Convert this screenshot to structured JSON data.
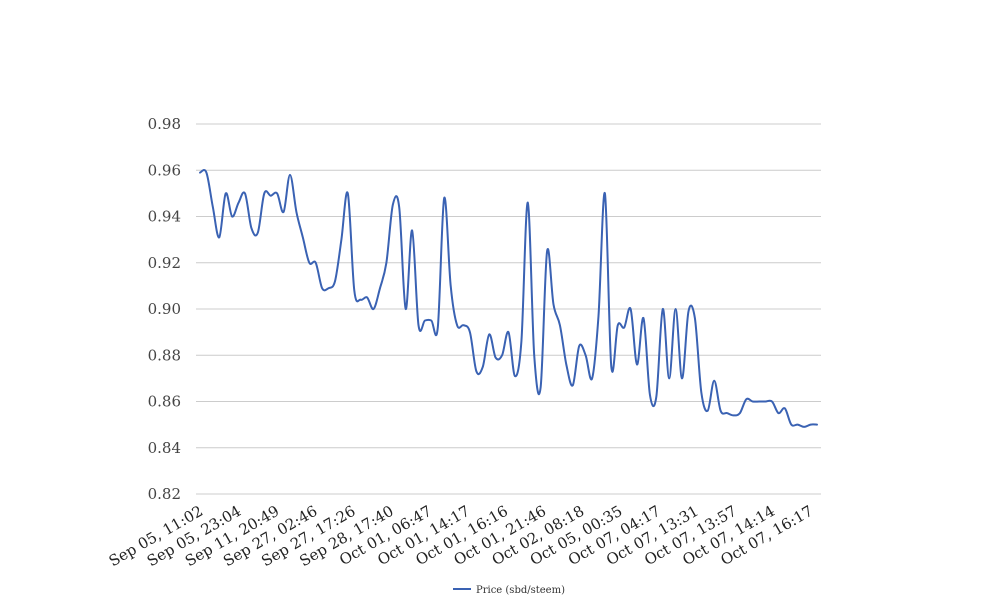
{
  "chart_data": {
    "type": "line",
    "title": "",
    "xlabel": "",
    "ylabel": "",
    "ylim": [
      0.82,
      0.98
    ],
    "yticks": [
      "0.82",
      "0.84",
      "0.86",
      "0.88",
      "0.90",
      "0.92",
      "0.94",
      "0.96",
      "0.98"
    ],
    "xtick_labels": [
      "Sep 05, 11:02",
      "Sep 05, 23:04",
      "Sep 11, 20:49",
      "Sep 27, 02:46",
      "Sep 27, 17:26",
      "Sep 28, 17:40",
      "Oct 01, 06:47",
      "Oct 01, 14:17",
      "Oct 01, 16:16",
      "Oct 01, 21:46",
      "Oct 02, 08:18",
      "Oct 05, 00:35",
      "Oct 07, 04:17",
      "Oct 07, 13:31",
      "Oct 07, 13:57",
      "Oct 07, 14:14",
      "Oct 07, 16:17"
    ],
    "grid": true,
    "legend_position": "bottom-center",
    "series": [
      {
        "name": "Price (sbd/steem)",
        "color": "#3a62b3",
        "values": [
          0.959,
          0.959,
          0.944,
          0.931,
          0.95,
          0.94,
          0.946,
          0.95,
          0.935,
          0.933,
          0.95,
          0.949,
          0.95,
          0.942,
          0.958,
          0.942,
          0.931,
          0.92,
          0.92,
          0.909,
          0.909,
          0.912,
          0.93,
          0.95,
          0.908,
          0.904,
          0.905,
          0.9,
          0.909,
          0.92,
          0.945,
          0.944,
          0.9,
          0.934,
          0.893,
          0.895,
          0.895,
          0.892,
          0.948,
          0.91,
          0.893,
          0.893,
          0.89,
          0.873,
          0.875,
          0.889,
          0.879,
          0.88,
          0.89,
          0.871,
          0.886,
          0.946,
          0.88,
          0.866,
          0.925,
          0.902,
          0.893,
          0.876,
          0.867,
          0.884,
          0.88,
          0.87,
          0.897,
          0.95,
          0.875,
          0.893,
          0.892,
          0.9,
          0.876,
          0.896,
          0.863,
          0.862,
          0.9,
          0.87,
          0.9,
          0.87,
          0.899,
          0.896,
          0.864,
          0.856,
          0.869,
          0.856,
          0.855,
          0.854,
          0.855,
          0.861,
          0.86,
          0.86,
          0.86,
          0.86,
          0.855,
          0.857,
          0.85,
          0.85,
          0.849,
          0.85,
          0.85
        ]
      }
    ]
  }
}
